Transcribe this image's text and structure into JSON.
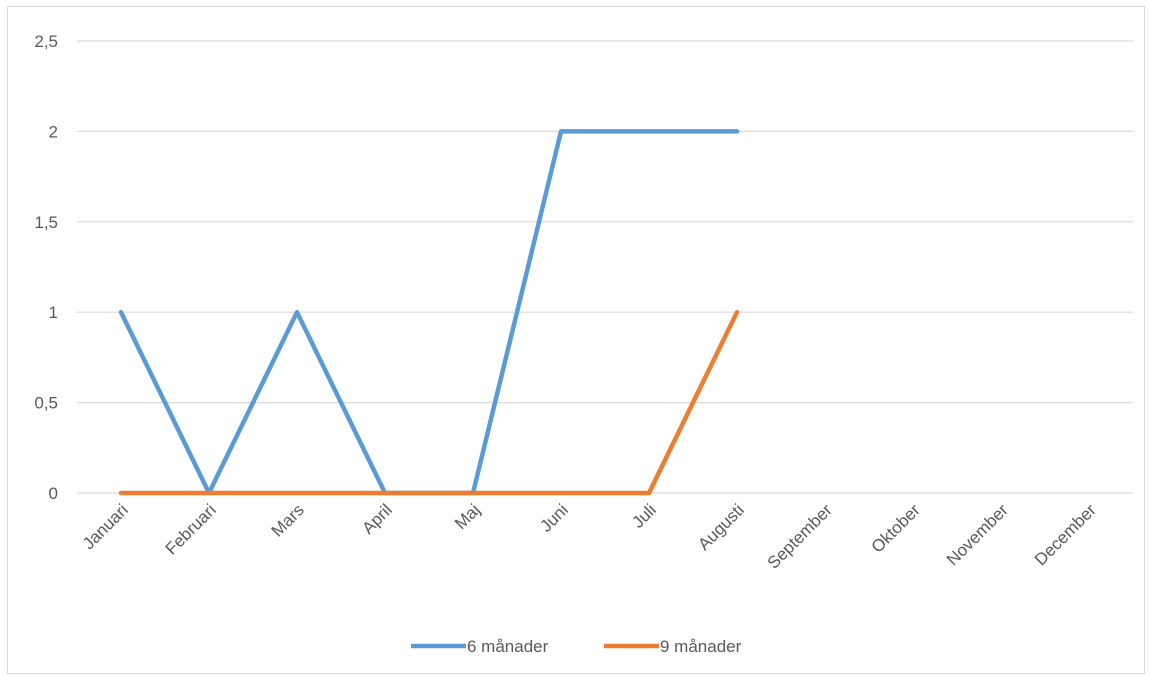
{
  "chart_data": {
    "type": "line",
    "title": "",
    "xlabel": "",
    "ylabel": "",
    "categories": [
      "Januari",
      "Februari",
      "Mars",
      "April",
      "Maj",
      "Juni",
      "Juli",
      "Augusti",
      "September",
      "Oktober",
      "November",
      "December"
    ],
    "ylim": [
      0,
      2.5
    ],
    "yticks": [
      "0",
      "0,5",
      "1",
      "1,5",
      "2",
      "2,5"
    ],
    "ytick_values": [
      0,
      0.5,
      1,
      1.5,
      2,
      2.5
    ],
    "grid": true,
    "legend_position": "bottom",
    "series": [
      {
        "name": "6 månader",
        "color": "#5b9bd5",
        "values": [
          1,
          0,
          1,
          0,
          0,
          2,
          2,
          2,
          null,
          null,
          null,
          null
        ]
      },
      {
        "name": "9 månader",
        "color": "#ed7d31",
        "values": [
          0,
          0,
          0,
          0,
          0,
          0,
          0,
          1,
          null,
          null,
          null,
          null
        ]
      }
    ]
  }
}
